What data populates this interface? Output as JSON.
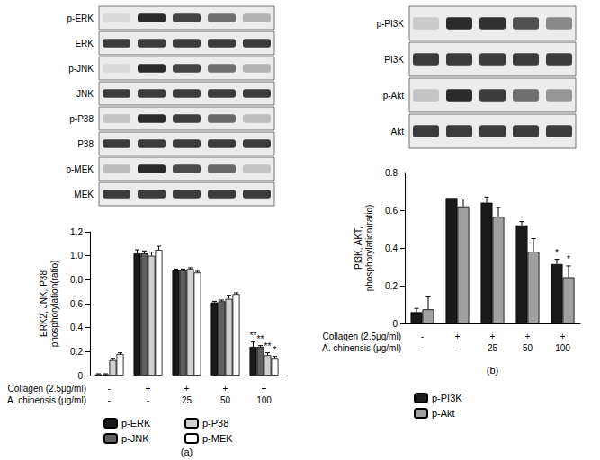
{
  "chart_data": [
    {
      "type": "bar",
      "title": "(a)",
      "blot_rows": [
        "p-ERK",
        "ERK",
        "p-JNK",
        "JNK",
        "p-P38",
        "P38",
        "p-MEK",
        "MEK"
      ],
      "y_label": "ERK2, JNK, P38\nphosphorylation(ratio)",
      "categories": [
        null,
        null,
        null,
        null,
        null
      ],
      "treatments": [
        {
          "label": "Collagen (2.5μg/ml)",
          "values": [
            "-",
            "+",
            "+",
            "+",
            "+"
          ]
        },
        {
          "label": "A. chinensis (μg/ml)",
          "values": [
            "-",
            "-",
            "25",
            "50",
            "100"
          ]
        }
      ],
      "ylim": [
        0,
        1.2
      ],
      "yticks": [
        0,
        0.2,
        0.4,
        0.6,
        0.8,
        {
          "value": 1,
          "label": "1.0"
        },
        1.2
      ],
      "grid": false,
      "legend": "bottom",
      "series": [
        {
          "name": "p-ERK",
          "color": "#1a1a1a",
          "values": [
            0.01,
            1.02,
            0.88,
            0.61,
            0.24
          ],
          "errors": [
            0.005,
            0.03,
            0.01,
            0.01,
            0.04
          ],
          "significance": [
            null,
            null,
            null,
            null,
            "**"
          ]
        },
        {
          "name": "p-JNK",
          "color": "#606060",
          "values": [
            0.01,
            1.02,
            0.88,
            0.62,
            0.24
          ],
          "errors": [
            0.005,
            0.02,
            0.01,
            0.01,
            0.01
          ],
          "significance": [
            null,
            null,
            null,
            null,
            "**"
          ]
        },
        {
          "name": "p-P38",
          "color": "#d0d0d0",
          "values": [
            0.13,
            1.0,
            0.89,
            0.64,
            0.17
          ],
          "errors": [
            0.01,
            0.03,
            0.01,
            0.03,
            0.02
          ],
          "significance": [
            null,
            null,
            null,
            null,
            "**"
          ]
        },
        {
          "name": "p-MEK",
          "color": "#ffffff",
          "values": [
            0.18,
            1.05,
            0.86,
            0.68,
            0.14
          ],
          "errors": [
            0.01,
            0.03,
            0.01,
            0.01,
            0.02
          ],
          "significance": [
            null,
            null,
            null,
            null,
            "*"
          ]
        }
      ]
    },
    {
      "type": "bar",
      "title": "(b)",
      "blot_rows": [
        "p-PI3K",
        "PI3K",
        "p-Akt",
        "Akt"
      ],
      "y_label": "PI3K, AKT,\nphosphorylation(ratio)",
      "categories": [
        null,
        null,
        null,
        null,
        null
      ],
      "treatments": [
        {
          "label": "Collagen (2.5μg/ml)",
          "values": [
            "-",
            "+",
            "+",
            "+",
            "+"
          ]
        },
        {
          "label": "A. chinensis (μg/ml)",
          "values": [
            "-",
            "-",
            "25",
            "50",
            "100"
          ]
        }
      ],
      "ylim": [
        0,
        0.8
      ],
      "yticks": [
        0,
        0.2,
        0.4,
        0.6,
        0.8
      ],
      "grid": false,
      "legend": "bottom",
      "series": [
        {
          "name": "p-PI3K",
          "color": "#1a1a1a",
          "values": [
            0.06,
            0.665,
            0.64,
            0.52,
            0.315
          ],
          "errors": [
            0.02,
            0,
            0.03,
            0.02,
            0.025
          ],
          "significance": [
            null,
            null,
            null,
            null,
            "*"
          ]
        },
        {
          "name": "p-Akt",
          "color": "#a0a0a0",
          "values": [
            0.075,
            0.62,
            0.565,
            0.38,
            0.245
          ],
          "errors": [
            0.065,
            0.04,
            0.05,
            0.07,
            0.06
          ],
          "significance": [
            null,
            null,
            null,
            null,
            "*"
          ]
        }
      ]
    }
  ]
}
